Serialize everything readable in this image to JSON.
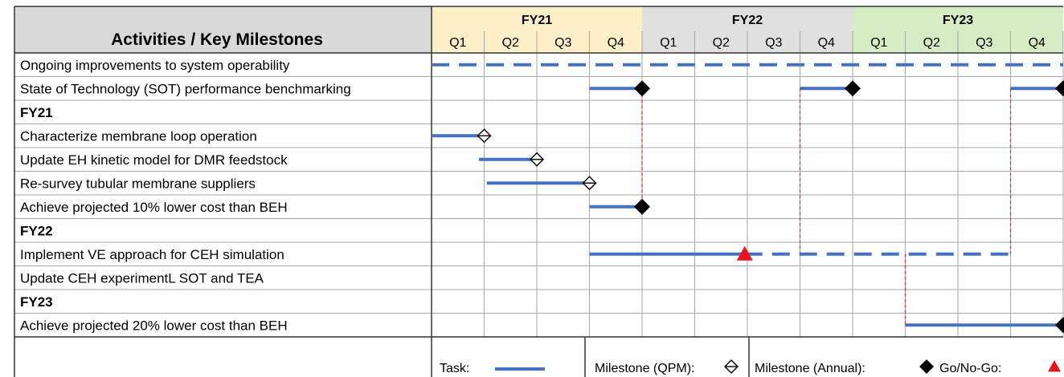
{
  "header": {
    "title": "Activities / Key Milestones",
    "years": [
      {
        "label": "FY21",
        "color": "#fcefc7"
      },
      {
        "label": "FY22",
        "color": "#e0e0e0"
      },
      {
        "label": "FY23",
        "color": "#d6ecc4"
      }
    ],
    "quarters": [
      "Q1",
      "Q2",
      "Q3",
      "Q4",
      "Q1",
      "Q2",
      "Q3",
      "Q4",
      "Q1",
      "Q2",
      "Q3",
      "Q4"
    ]
  },
  "rows": [
    {
      "label": "Ongoing improvements to system operability",
      "bold": false
    },
    {
      "label": "State of Technology (SOT) performance benchmarking",
      "bold": false
    },
    {
      "label": "FY21",
      "bold": true
    },
    {
      "label": "Characterize membrane loop operation",
      "bold": false
    },
    {
      "label": "Update EH kinetic model for DMR feedstock",
      "bold": false
    },
    {
      "label": "Re-survey tubular membrane suppliers",
      "bold": false
    },
    {
      "label": "Achieve projected 10% lower cost than BEH",
      "bold": false
    },
    {
      "label": "FY22",
      "bold": true
    },
    {
      "label": "Implement VE approach for CEH simulation",
      "bold": false
    },
    {
      "label": "Update CEH experimentL SOT and TEA",
      "bold": false
    },
    {
      "label": "FY23",
      "bold": true
    },
    {
      "label": "Achieve projected 20% lower cost than BEH",
      "bold": false
    }
  ],
  "tasks": [
    {
      "row": 0,
      "start": 0,
      "end": 12,
      "style": "dashed"
    },
    {
      "row": 1,
      "start": 3,
      "end": 4,
      "style": "solid"
    },
    {
      "row": 1,
      "start": 7,
      "end": 8,
      "style": "solid"
    },
    {
      "row": 1,
      "start": 11,
      "end": 12,
      "style": "solid"
    },
    {
      "row": 3,
      "start": 0,
      "end": 1,
      "style": "solid"
    },
    {
      "row": 4,
      "start": 0.9,
      "end": 2,
      "style": "solid"
    },
    {
      "row": 5,
      "start": 1.05,
      "end": 3,
      "style": "solid"
    },
    {
      "row": 6,
      "start": 3,
      "end": 4,
      "style": "solid"
    },
    {
      "row": 8,
      "start": 3,
      "end": 5.95,
      "style": "solid"
    },
    {
      "row": 8,
      "start": 5.95,
      "end": 11,
      "style": "dashed"
    },
    {
      "row": 11,
      "start": 9,
      "end": 12,
      "style": "solid"
    }
  ],
  "milestones": [
    {
      "row": 1,
      "at": 4,
      "type": "annual"
    },
    {
      "row": 1,
      "at": 8,
      "type": "annual"
    },
    {
      "row": 1,
      "at": 12,
      "type": "annual"
    },
    {
      "row": 3,
      "at": 1,
      "type": "qpm"
    },
    {
      "row": 4,
      "at": 2,
      "type": "qpm"
    },
    {
      "row": 5,
      "at": 3,
      "type": "qpm"
    },
    {
      "row": 6,
      "at": 4,
      "type": "annual"
    },
    {
      "row": 8,
      "at": 5.95,
      "type": "gonogo"
    },
    {
      "row": 11,
      "at": 12,
      "type": "annual"
    }
  ],
  "connectors": [
    {
      "at": 4,
      "from_row": 1,
      "to_row": 6
    },
    {
      "at": 7,
      "from_row": 1,
      "to_row": 8
    },
    {
      "at": 9,
      "from_row": 8,
      "to_row": 11
    },
    {
      "at": 11,
      "from_row": 1,
      "to_row": 8
    }
  ],
  "legend": {
    "task_label": "Task:",
    "qpm_label": "Milestone (QPM):",
    "annual_label": "Milestone (Annual):",
    "gonogo_label": "Go/No-Go:"
  },
  "colors": {
    "task": "#4472c4",
    "gonogo": "#e8141b",
    "connector": "#d9342b",
    "grid": "#a6a6a6",
    "border": "#333333",
    "title_bg": "#d9d9d9"
  }
}
